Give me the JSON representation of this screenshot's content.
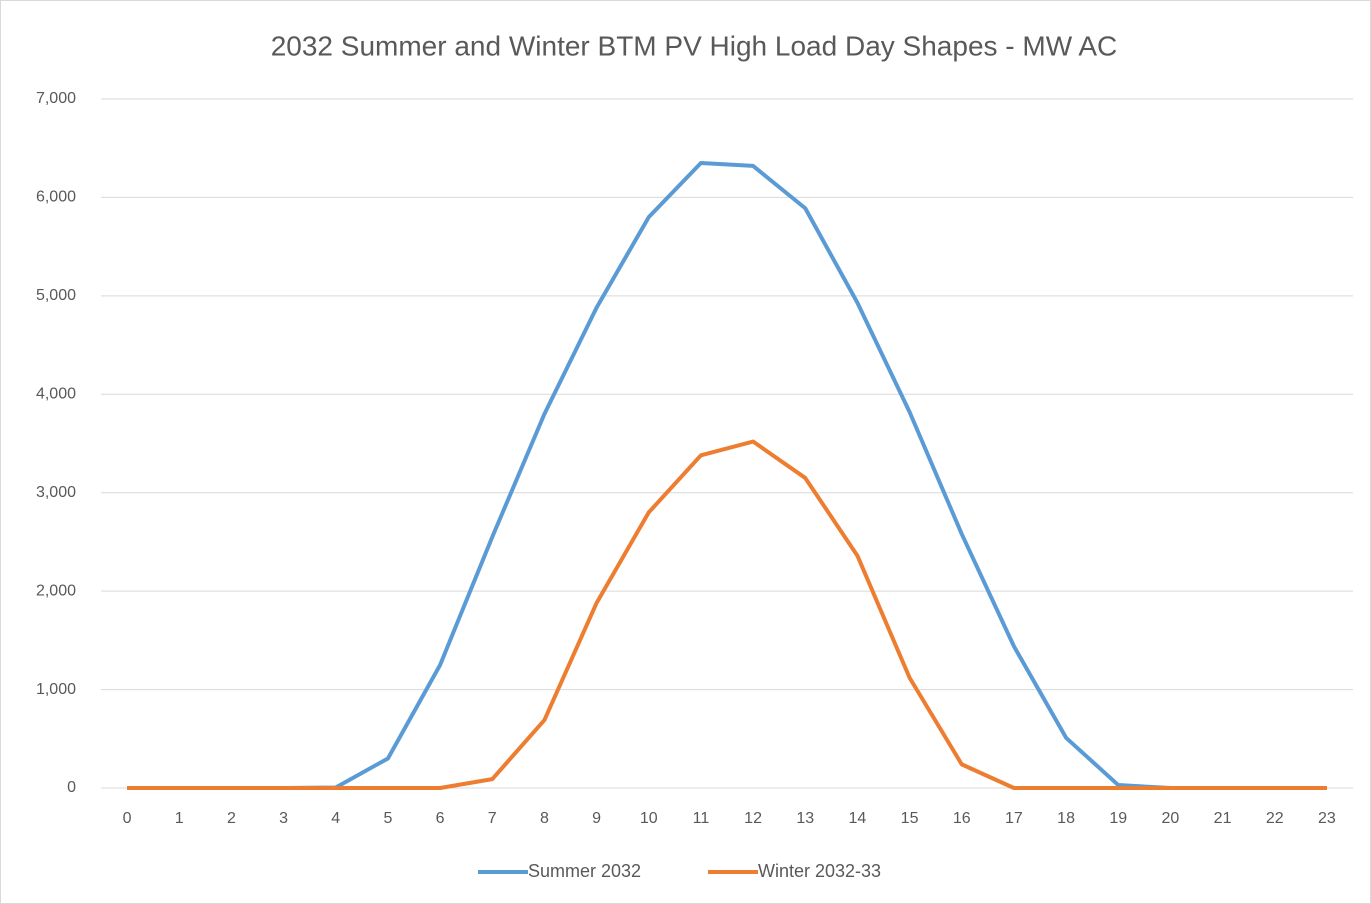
{
  "chart_data": {
    "type": "line",
    "title": "2032 Summer and Winter BTM PV High Load Day Shapes - MW AC",
    "categories": [
      "0",
      "1",
      "2",
      "3",
      "4",
      "5",
      "6",
      "7",
      "8",
      "9",
      "10",
      "11",
      "12",
      "13",
      "14",
      "15",
      "16",
      "17",
      "18",
      "19",
      "20",
      "21",
      "22",
      "23"
    ],
    "series": [
      {
        "name": "Summer 2032",
        "color": "#5b9bd5",
        "values": [
          0,
          0,
          0,
          0,
          5,
          300,
          1250,
          2550,
          3800,
          4880,
          5800,
          6350,
          6320,
          5890,
          4930,
          3820,
          2580,
          1440,
          510,
          30,
          0,
          0,
          0,
          0
        ]
      },
      {
        "name": "Winter 2032-33",
        "color": "#ed7d31",
        "values": [
          0,
          0,
          0,
          0,
          0,
          0,
          0,
          90,
          690,
          1880,
          2800,
          3380,
          3520,
          3150,
          2360,
          1120,
          240,
          0,
          0,
          0,
          0,
          0,
          0,
          0
        ]
      }
    ],
    "ylim": [
      0,
      7000
    ],
    "yticks": [
      0,
      {
        "value": 1000,
        "label": "1,000"
      },
      {
        "value": 2000,
        "label": "2,000"
      },
      {
        "value": 3000,
        "label": "3,000"
      },
      {
        "value": 4000,
        "label": "4,000"
      },
      {
        "value": 5000,
        "label": "5,000"
      },
      {
        "value": 6000,
        "label": "6,000"
      },
      {
        "value": 7000,
        "label": "7,000"
      }
    ],
    "grid": true,
    "legend": "bottom"
  }
}
